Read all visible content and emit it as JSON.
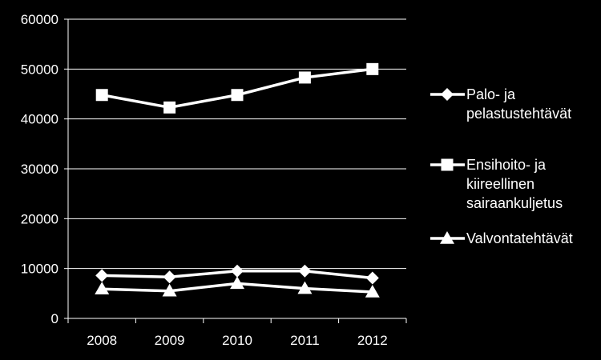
{
  "chart_data": {
    "type": "line",
    "title": "",
    "xlabel": "",
    "ylabel": "",
    "categories": [
      "2008",
      "2009",
      "2010",
      "2011",
      "2012"
    ],
    "ylim": [
      0,
      60000
    ],
    "yticks": [
      0,
      10000,
      20000,
      30000,
      40000,
      50000,
      60000
    ],
    "grid": "horizontal",
    "legend_position": "right",
    "series": [
      {
        "name_lines": [
          "Palo- ja",
          "pelastustehtävät"
        ],
        "marker": "diamond",
        "values": [
          8600,
          8300,
          9500,
          9500,
          8100
        ]
      },
      {
        "name_lines": [
          "Ensihoito- ja",
          "kiireellinen",
          "sairaankuljetus"
        ],
        "marker": "square",
        "values": [
          44800,
          42300,
          44800,
          48300,
          50000
        ]
      },
      {
        "name_lines": [
          "Valvontatehtävät"
        ],
        "marker": "triangle",
        "values": [
          5900,
          5500,
          7000,
          6000,
          5300
        ]
      }
    ]
  },
  "colors": {
    "background": "#000000",
    "foreground": "#ffffff"
  }
}
